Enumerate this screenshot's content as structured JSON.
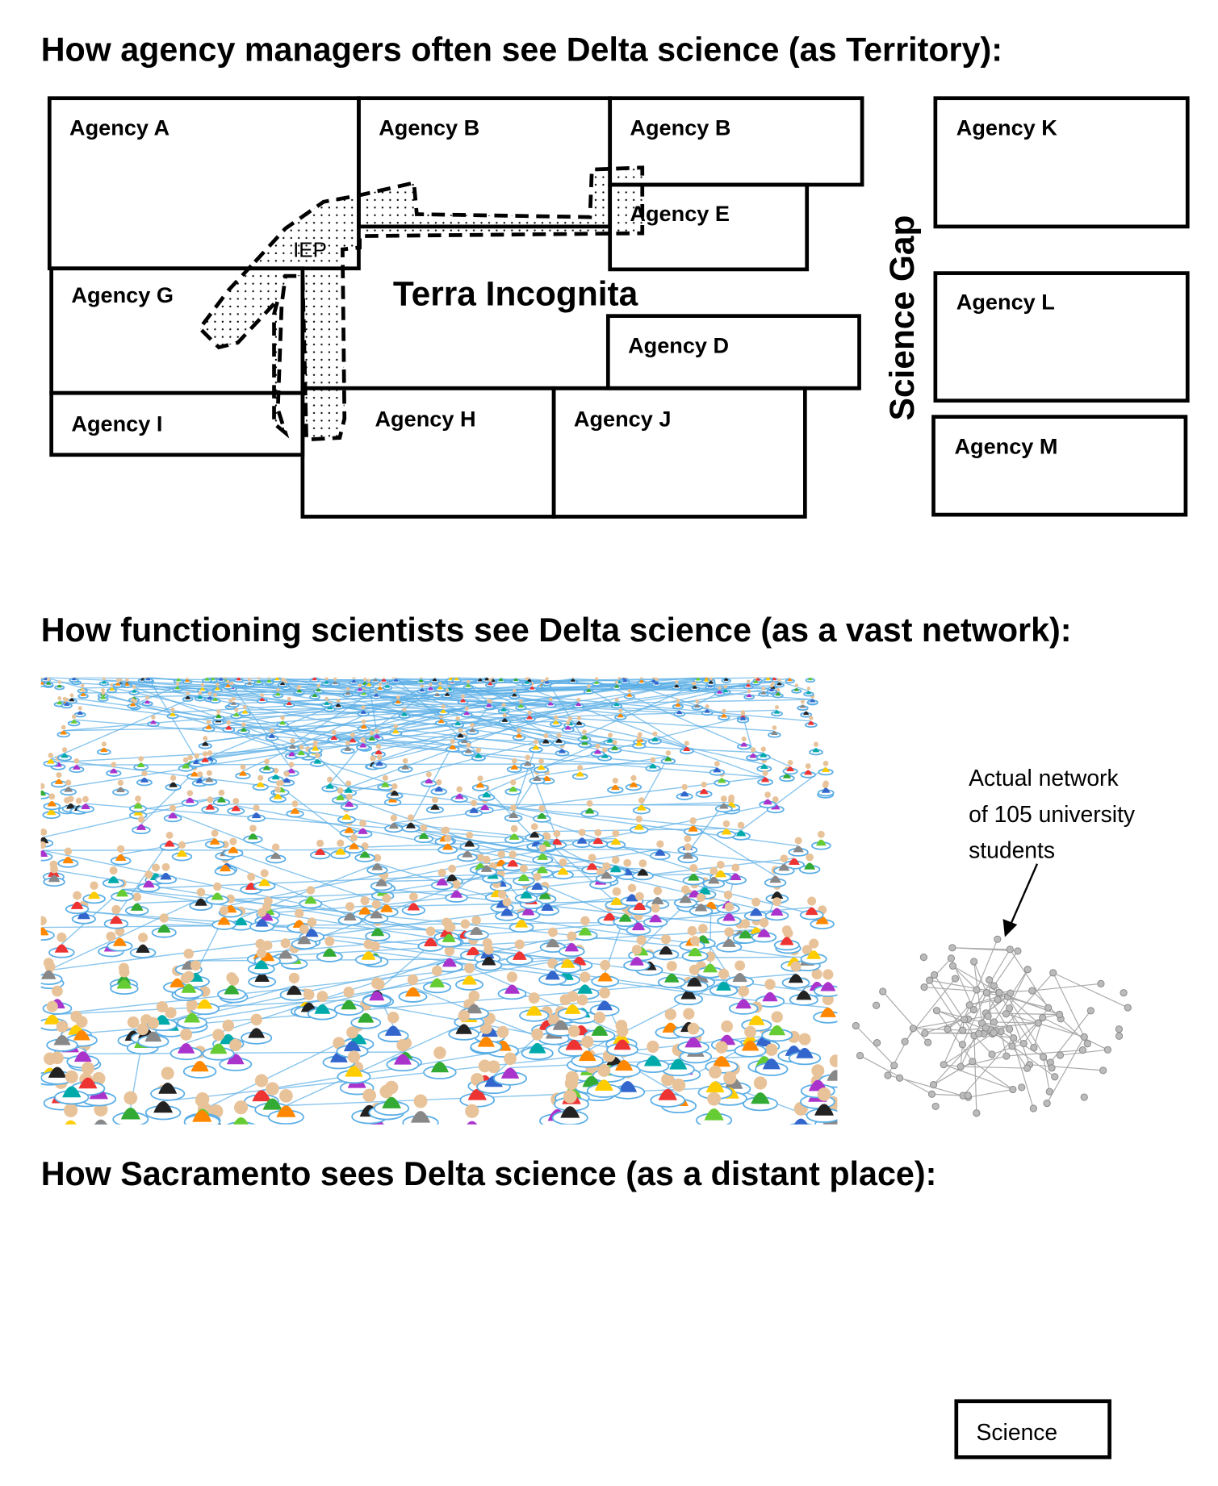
{
  "section1": {
    "title": "How agency managers often see Delta science (as Territory):",
    "agencies": [
      "Agency A",
      "Agency B",
      "Agency B",
      "Agency E",
      "Agency G",
      "Agency I",
      "Agency D",
      "Agency H",
      "Agency J",
      "Agency K",
      "Agency L",
      "Agency M"
    ],
    "iep_label": "IEP",
    "center_label": "Terra Incognita",
    "gap_label": "Science Gap"
  },
  "section2": {
    "title": "How functioning scientists see Delta science (as a vast network):",
    "caption": [
      "Actual network",
      "of 105 university",
      "students"
    ],
    "network_color": "#5aaee6"
  },
  "section3": {
    "title": "How Sacramento sees Delta science (as a distant place):",
    "box_label": "Science"
  }
}
